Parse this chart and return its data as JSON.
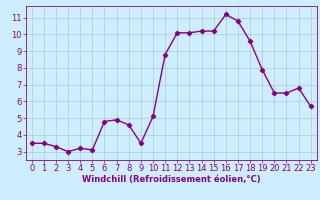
{
  "x": [
    0,
    1,
    2,
    3,
    4,
    5,
    6,
    7,
    8,
    9,
    10,
    11,
    12,
    13,
    14,
    15,
    16,
    17,
    18,
    19,
    20,
    21,
    22,
    23
  ],
  "y": [
    3.5,
    3.5,
    3.3,
    3.0,
    3.2,
    3.1,
    4.8,
    4.9,
    4.6,
    3.5,
    5.1,
    8.8,
    10.1,
    10.1,
    10.2,
    10.2,
    11.2,
    10.8,
    9.6,
    7.9,
    6.5,
    6.5,
    6.8,
    5.7
  ],
  "line_color": "#880088",
  "marker": "D",
  "marker_size": 2.2,
  "xlabel": "Windchill (Refroidissement éolien,°C)",
  "ylabel": "",
  "ylim": [
    2.5,
    11.7
  ],
  "yticks": [
    3,
    4,
    5,
    6,
    7,
    8,
    9,
    10,
    11
  ],
  "xticks": [
    0,
    1,
    2,
    3,
    4,
    5,
    6,
    7,
    8,
    9,
    10,
    11,
    12,
    13,
    14,
    15,
    16,
    17,
    18,
    19,
    20,
    21,
    22,
    23
  ],
  "bg_color": "#cceeff",
  "grid_color": "#aacccc",
  "axis_color": "#880088",
  "tick_label_color": "#880088",
  "xlabel_color": "#880088",
  "xlabel_fontsize": 6.0,
  "tick_fontsize": 6.0,
  "line_width": 1.0
}
